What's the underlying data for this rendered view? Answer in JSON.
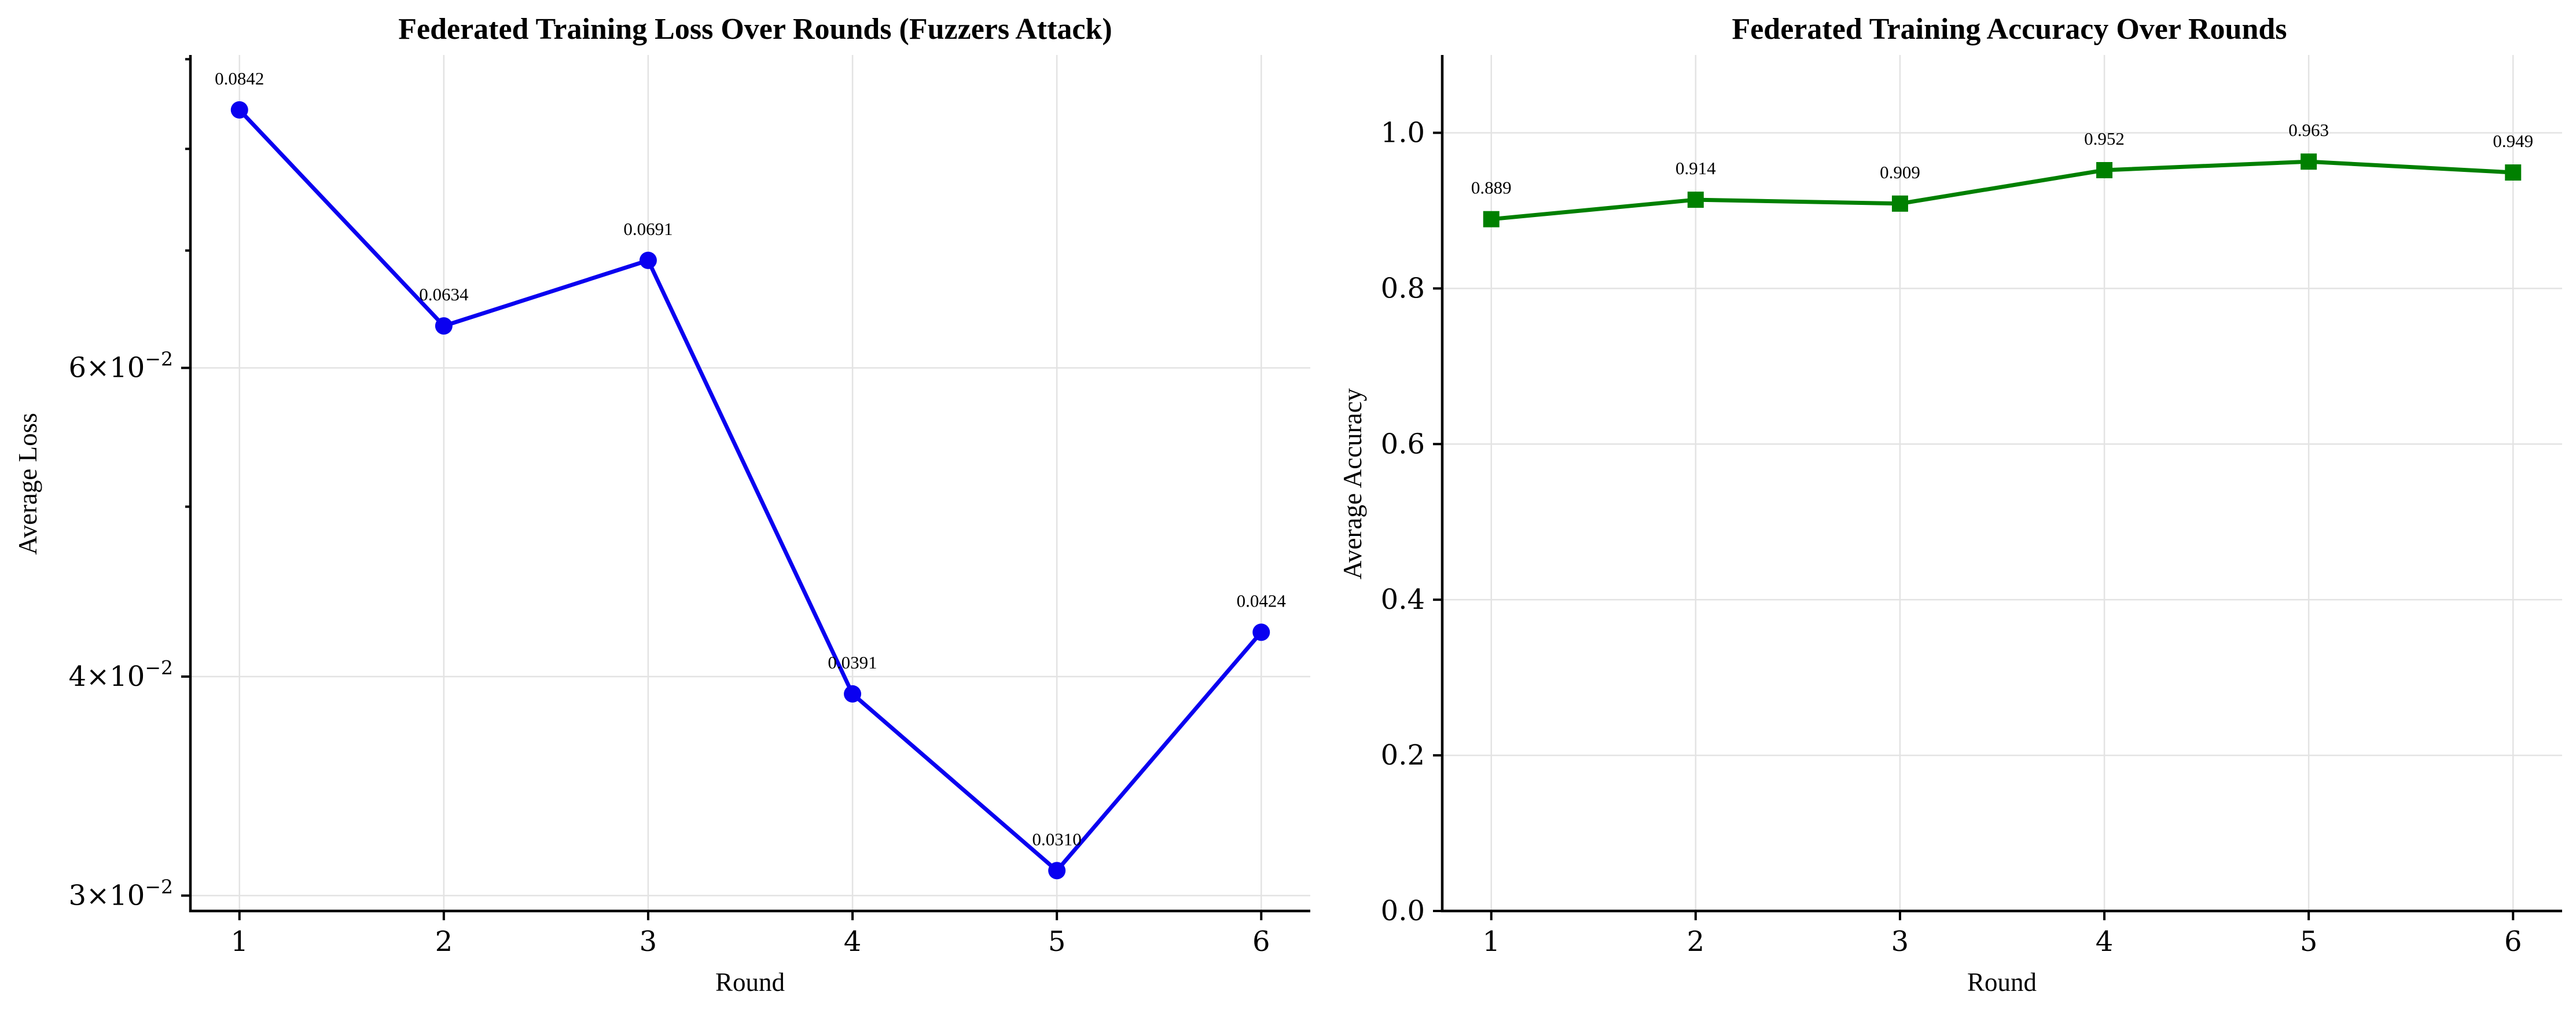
{
  "chart_data": [
    {
      "type": "line",
      "title": "Federated Training Loss Over Rounds (Fuzzers Attack)",
      "xlabel": "Round",
      "ylabel": "Average Loss",
      "yscale": "log",
      "x": [
        1,
        2,
        3,
        4,
        5,
        6
      ],
      "xticks": [
        "1",
        "2",
        "3",
        "4",
        "5",
        "6"
      ],
      "xlim": [
        0.76,
        6.24
      ],
      "ylim": [
        0.0294,
        0.0905
      ],
      "yticks": [
        {
          "value": 0.06,
          "mantissa": "6",
          "exponent": "−2"
        },
        {
          "value": 0.04,
          "mantissa": "4",
          "exponent": "−2"
        },
        {
          "value": 0.03,
          "mantissa": "3",
          "exponent": "−2"
        }
      ],
      "yminor": [
        0.05,
        0.07,
        0.08,
        0.09
      ],
      "series": [
        {
          "values": [
            0.0842,
            0.0634,
            0.0691,
            0.0391,
            0.031,
            0.0424
          ],
          "labels": [
            "0.0842",
            "0.0634",
            "0.0691",
            "0.0391",
            "0.0310",
            "0.0424"
          ],
          "color": "#0a00f0",
          "marker": "circle"
        }
      ],
      "grid": true
    },
    {
      "type": "line",
      "title": "Federated Training Accuracy Over Rounds",
      "xlabel": "Round",
      "ylabel": "Average Accuracy",
      "x": [
        1,
        2,
        3,
        4,
        5,
        6
      ],
      "xticks": [
        "1",
        "2",
        "3",
        "4",
        "5",
        "6"
      ],
      "xlim": [
        0.76,
        6.24
      ],
      "ylim": [
        0.0,
        1.1
      ],
      "yticks": [
        {
          "value": 0.0,
          "label": "0.0"
        },
        {
          "value": 0.2,
          "label": "0.2"
        },
        {
          "value": 0.4,
          "label": "0.4"
        },
        {
          "value": 0.6,
          "label": "0.6"
        },
        {
          "value": 0.8,
          "label": "0.8"
        },
        {
          "value": 1.0,
          "label": "1.0"
        }
      ],
      "series": [
        {
          "values": [
            0.889,
            0.914,
            0.909,
            0.952,
            0.963,
            0.949
          ],
          "labels": [
            "0.889",
            "0.914",
            "0.909",
            "0.952",
            "0.963",
            "0.949"
          ],
          "color": "#008000",
          "marker": "square"
        }
      ],
      "grid": true
    }
  ]
}
